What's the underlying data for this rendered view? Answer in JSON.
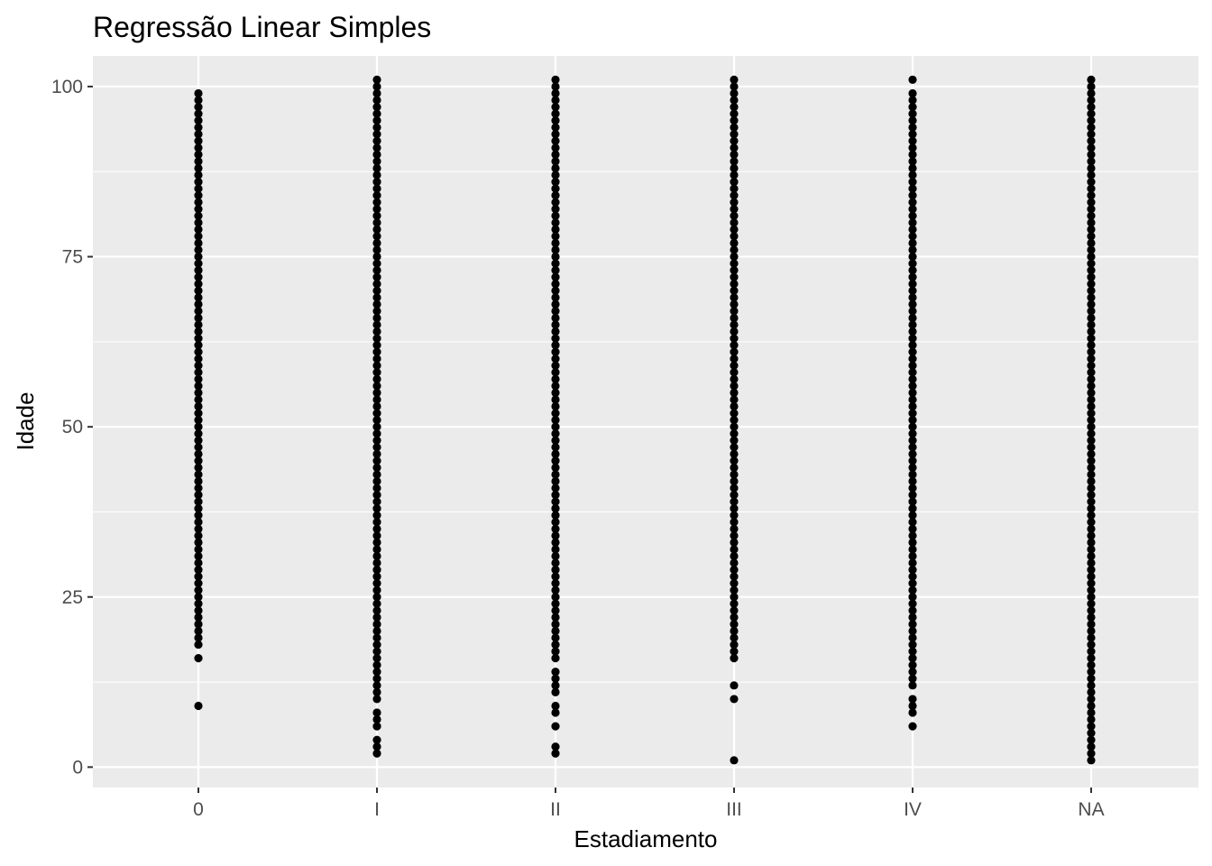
{
  "chart_data": {
    "type": "scatter",
    "title": "Regressão Linear Simples",
    "xlabel": "Estadiamento",
    "ylabel": "Idade",
    "categories": [
      "0",
      "I",
      "II",
      "III",
      "IV",
      "NA"
    ],
    "ylim": [
      -3,
      104.5
    ],
    "yticks": [
      0,
      25,
      50,
      75,
      100
    ],
    "grid": true,
    "point_color": "#000000",
    "panel_color": "#ebebeb",
    "grid_color": "#ffffff",
    "series": [
      {
        "category": "0",
        "y_min": 18,
        "y_max": 99,
        "extra": [
          9,
          16
        ]
      },
      {
        "category": "I",
        "y_min": 10,
        "y_max": 101,
        "extra": [
          2,
          3,
          4,
          6,
          7,
          8
        ]
      },
      {
        "category": "II",
        "y_min": 16,
        "y_max": 101,
        "extra": [
          2,
          3,
          6,
          8,
          9,
          11,
          12,
          13,
          14
        ]
      },
      {
        "category": "III",
        "y_min": 16,
        "y_max": 101,
        "extra": [
          1,
          10,
          12
        ]
      },
      {
        "category": "IV",
        "y_min": 12,
        "y_max": 99,
        "extra": [
          6,
          8,
          9,
          10,
          101
        ]
      },
      {
        "category": "NA",
        "y_min": 1,
        "y_max": 101,
        "extra": []
      }
    ]
  }
}
